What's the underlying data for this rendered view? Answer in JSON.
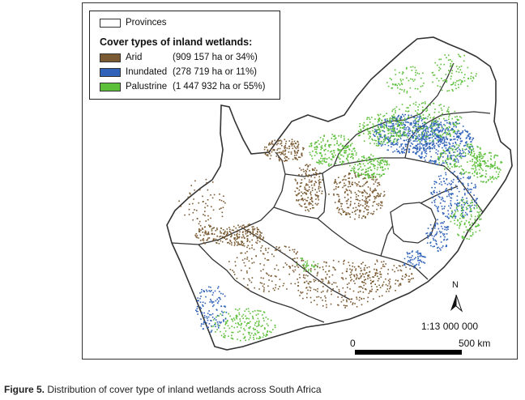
{
  "legend": {
    "provinces_label": "Provinces",
    "title": "Cover types of inland wetlands:",
    "items": [
      {
        "name": "Arid",
        "stat": "(909 157 ha or 34%)",
        "color": "#7a5a32"
      },
      {
        "name": "Inundated",
        "stat": "(278 719 ha or 11%)",
        "color": "#2f62b8"
      },
      {
        "name": "Palustrine",
        "stat": "(1 447 932 ha or 55%)",
        "color": "#5cbf3a"
      }
    ]
  },
  "map": {
    "north_label": "N",
    "scale_ratio": "1:13 000 000",
    "scale_start": "0",
    "scale_end": "500 km"
  },
  "caption": {
    "label": "Figure 5.",
    "text": " Distribution of cover type of inland wetlands across South Africa"
  },
  "colors": {
    "arid": "#7a5a32",
    "inundated": "#2f62b8",
    "palustrine": "#5cbf3a",
    "outline": "#333333"
  }
}
